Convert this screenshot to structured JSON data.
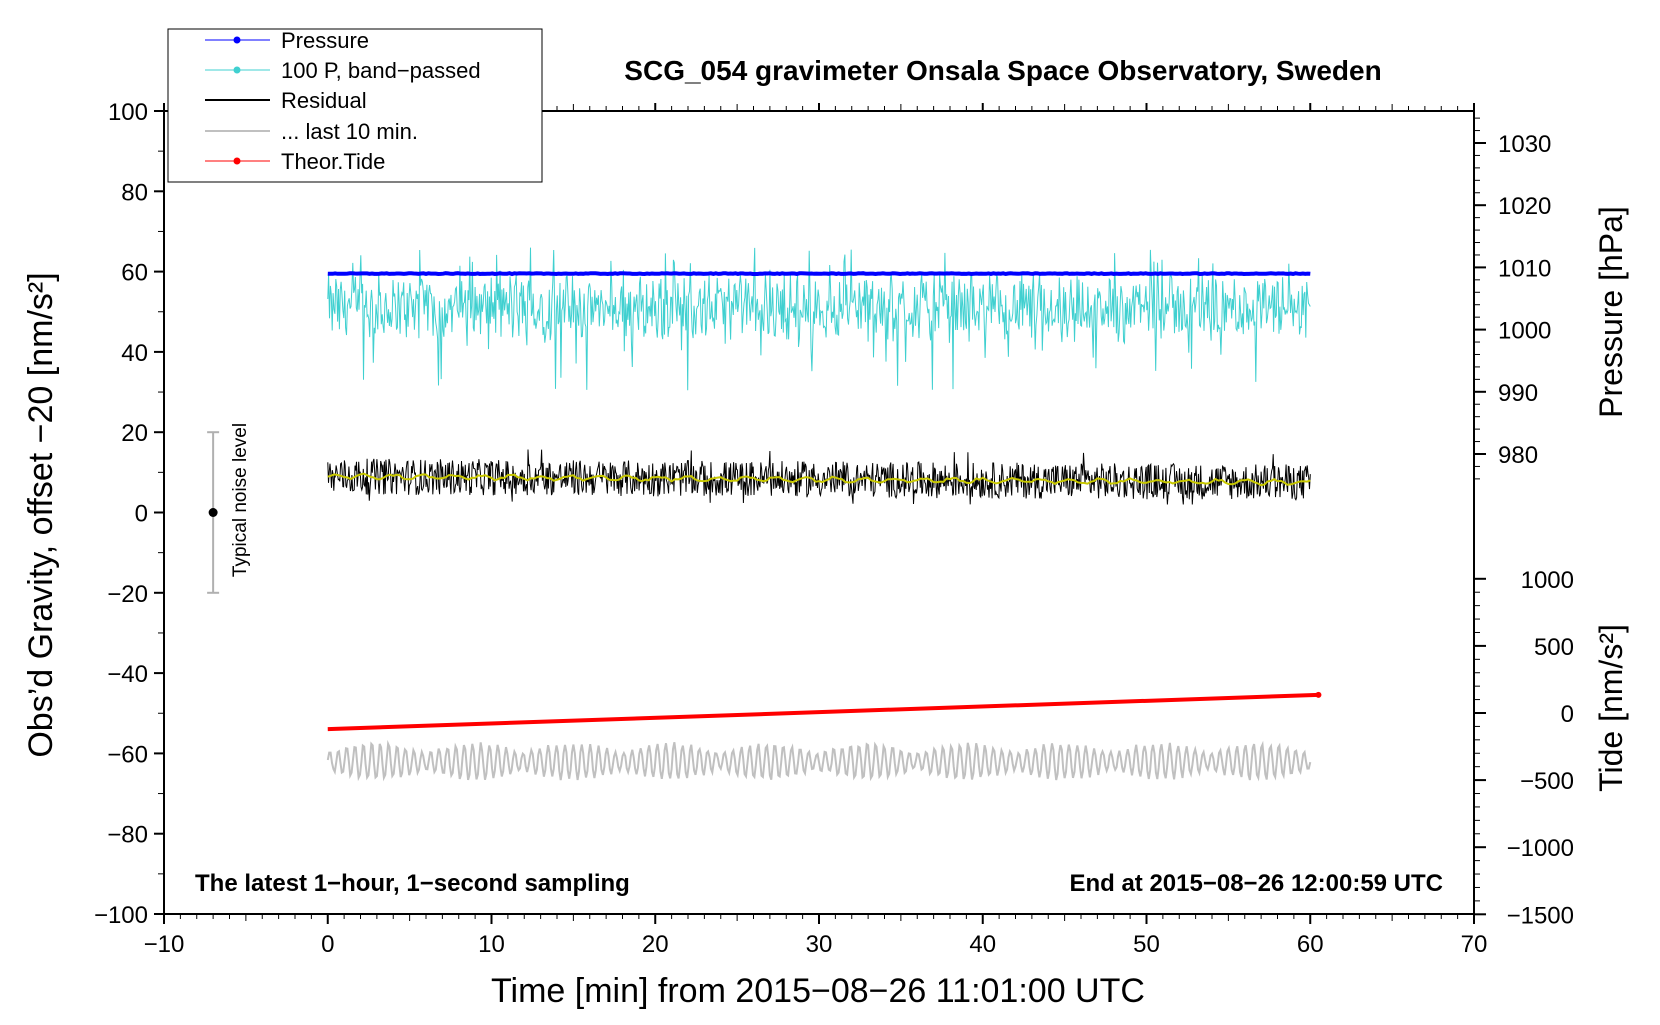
{
  "chart_data": {
    "type": "line",
    "title": "SCG_054 gravimeter Onsala Space Observatory, Sweden",
    "xlabel": "Time [min] from 2015−08−26 11:01:00 UTC",
    "ylabel_left": "Obs’d Gravity, offset −20 [nm/s²]",
    "ylabel_pressure": "Pressure [hPa]",
    "ylabel_tide": "Tide [nm/s²]",
    "xlim": [
      -10,
      70
    ],
    "ylim": [
      -100,
      100
    ],
    "pressure_lim": [
      975,
      1035
    ],
    "tide_lim": [
      -1500,
      1500
    ],
    "x_ticks": [
      "−10",
      "0",
      "10",
      "20",
      "30",
      "40",
      "50",
      "60",
      "70"
    ],
    "x_tick_values": [
      -10,
      0,
      10,
      20,
      30,
      40,
      50,
      60,
      70
    ],
    "y_ticks": [
      "100",
      "80",
      "60",
      "40",
      "20",
      "0",
      "−20",
      "−40",
      "−60",
      "−80",
      "−100"
    ],
    "y_tick_values": [
      100,
      80,
      60,
      40,
      20,
      0,
      -20,
      -40,
      -60,
      -80,
      -100
    ],
    "pressure_ticks": [
      "1030",
      "1020",
      "1010",
      "1000",
      "990",
      "980"
    ],
    "pressure_tick_values": [
      1030,
      1020,
      1010,
      1000,
      990,
      980
    ],
    "tide_ticks": [
      "1000",
      "500",
      "0",
      "−500",
      "−1000",
      "−1500"
    ],
    "tide_tick_values": [
      1000,
      500,
      0,
      -500,
      -1000,
      -1500
    ],
    "legend": [
      "Pressure",
      "100 P, band−passed",
      "Residual",
      "... last 10 min.",
      "Theor.Tide"
    ],
    "legend_location": "top-left",
    "annotation_left": "The latest 1−hour, 1−second sampling",
    "annotation_right": "End at 2015−08−26 12:00:59 UTC",
    "noise_label": "Typical noise level",
    "noise_bar": {
      "x": -7,
      "center": 0,
      "low": -20,
      "high": 20
    },
    "series": [
      {
        "name": "Pressure",
        "color": "#0000ff",
        "x_range": [
          0,
          60
        ],
        "values_hpa": [
          1009.0,
          1009.0
        ]
      },
      {
        "name": "100 P, band−passed",
        "color": "#40d0d0",
        "x_range": [
          0,
          60
        ],
        "mean": 51,
        "min": 30,
        "max": 66
      },
      {
        "name": "Residual",
        "color": "#000000",
        "x_range": [
          0,
          60
        ],
        "mean": 8.5,
        "min": 2,
        "max": 17
      },
      {
        "name": "Residual smoothed",
        "color": "#c8c800",
        "x_range": [
          0,
          60
        ],
        "values": [
          9,
          7.5
        ]
      },
      {
        "name": "... last 10 min.",
        "color": "#c0c0c0",
        "x_range": [
          0,
          60
        ],
        "mean": -62,
        "min": -67,
        "max": -56
      },
      {
        "name": "Theor.Tide",
        "color": "#ff0000",
        "x": [
          0,
          60.5
        ],
        "values_nms2": [
          -120,
          135
        ]
      }
    ]
  }
}
